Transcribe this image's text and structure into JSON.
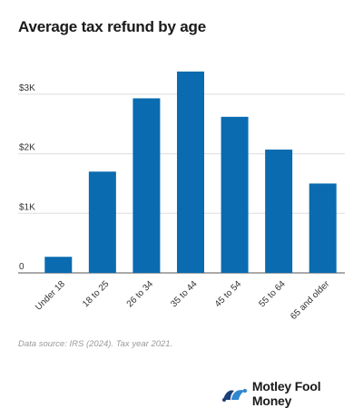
{
  "chart_data": {
    "type": "bar",
    "title": "Average tax refund by age",
    "categories": [
      "Under 18",
      "18 to 25",
      "26 to 34",
      "35 to 44",
      "45 to 54",
      "55 to 64",
      "65 and older"
    ],
    "values": [
      270,
      1700,
      2930,
      3380,
      2620,
      2070,
      1500
    ],
    "yticks": [
      0,
      1000,
      2000,
      3000
    ],
    "ytick_labels": [
      "0",
      "$1K",
      "$2K",
      "$3K"
    ],
    "ylim": [
      0,
      3500
    ],
    "xlabel": "",
    "ylabel": "",
    "grid": true,
    "bar_color": "#0a6bb0",
    "source": "Data source: IRS (2024). Tax year 2021."
  },
  "brand": {
    "name": "Motley Fool Money",
    "logo_icon": "jester-cap-icon",
    "colors": [
      "#1d3f78",
      "#2f87d0"
    ]
  }
}
